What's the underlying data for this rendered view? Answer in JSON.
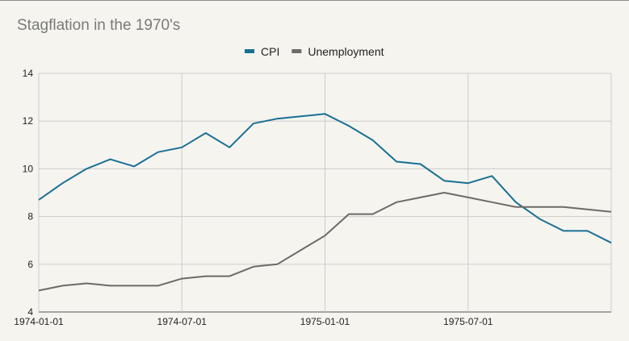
{
  "chart_data": {
    "type": "line",
    "title": "Stagflation in the 1970's",
    "xlabel": "",
    "ylabel": "",
    "ylim": [
      4,
      14
    ],
    "y_ticks": [
      "4",
      "6",
      "8",
      "10",
      "12",
      "14"
    ],
    "x_ticks": [
      {
        "label": "1974-01-01",
        "month_index": 0
      },
      {
        "label": "1974-07-01",
        "month_index": 6
      },
      {
        "label": "1975-01-01",
        "month_index": 12
      },
      {
        "label": "1975-07-01",
        "month_index": 18
      }
    ],
    "x": [
      "1974-01",
      "1974-02",
      "1974-03",
      "1974-04",
      "1974-05",
      "1974-06",
      "1974-07",
      "1974-08",
      "1974-09",
      "1974-10",
      "1974-11",
      "1974-12",
      "1975-01",
      "1975-02",
      "1975-03",
      "1975-04",
      "1975-05",
      "1975-06",
      "1975-07",
      "1975-08",
      "1975-09",
      "1975-10",
      "1975-11",
      "1975-12",
      "1976-01"
    ],
    "series": [
      {
        "name": "CPI",
        "color": "#1a6f94",
        "values": [
          8.7,
          9.4,
          10.0,
          10.4,
          10.1,
          10.7,
          10.9,
          11.5,
          10.9,
          11.9,
          12.1,
          12.2,
          12.3,
          11.8,
          11.2,
          10.3,
          10.2,
          9.5,
          9.4,
          9.7,
          8.6,
          7.9,
          7.4,
          7.4,
          6.9
        ]
      },
      {
        "name": "Unemployment",
        "color": "#6e6a67",
        "values": [
          4.9,
          5.1,
          5.2,
          5.1,
          5.1,
          5.1,
          5.4,
          5.5,
          5.5,
          5.9,
          6.0,
          6.6,
          7.2,
          8.1,
          8.1,
          8.6,
          8.8,
          9.0,
          8.8,
          8.6,
          8.4,
          8.4,
          8.4,
          8.3,
          8.2
        ]
      }
    ],
    "legend_position": "top",
    "grid": true,
    "colors": {
      "background": "#f5f4ef",
      "grid": "#cccccc",
      "title": "#7a7a7a"
    }
  }
}
